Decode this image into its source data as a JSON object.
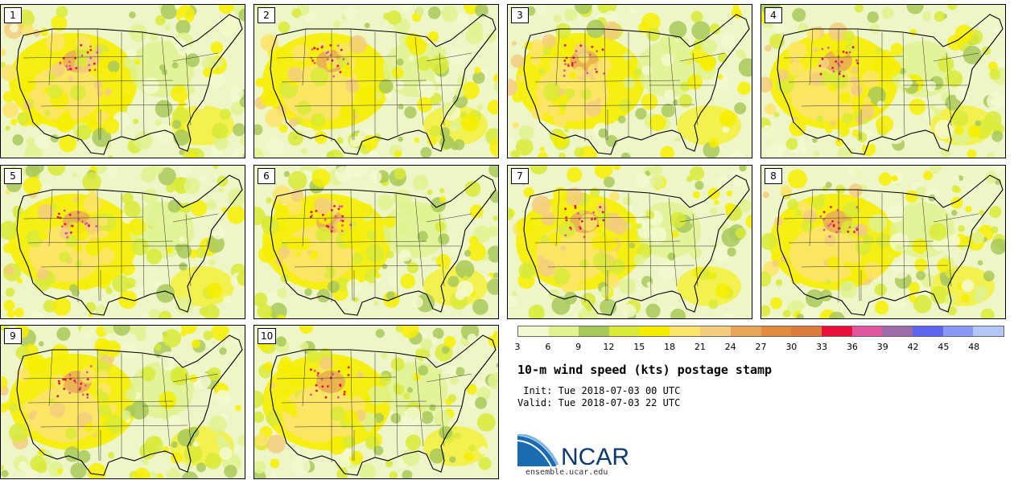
{
  "figure": {
    "title": "10-m wind speed (kts) postage stamp",
    "init_label": " Init: Tue 2018-07-03 00 UTC",
    "valid_label": "Valid: Tue 2018-07-03 22 UTC",
    "logo_text": "NCAR",
    "site": "ensemble.ucar.edu"
  },
  "panels": [
    {
      "label": "1"
    },
    {
      "label": "2"
    },
    {
      "label": "3"
    },
    {
      "label": "4"
    },
    {
      "label": "5"
    },
    {
      "label": "6"
    },
    {
      "label": "7"
    },
    {
      "label": "8"
    },
    {
      "label": "9"
    },
    {
      "label": "10"
    }
  ],
  "legend": {
    "ticks": [
      "3",
      "6",
      "9",
      "12",
      "15",
      "18",
      "21",
      "24",
      "27",
      "30",
      "33",
      "36",
      "39",
      "42",
      "45",
      "48"
    ],
    "colors": [
      "#f3f9cf",
      "#dff28f",
      "#a8c95a",
      "#d8ea37",
      "#f6ee00",
      "#fbe46a",
      "#f3cc7e",
      "#e9a55a",
      "#e28a3d",
      "#da7a3d",
      "#e8103b",
      "#e0559f",
      "#9e6ba9",
      "#5e66f0",
      "#8898f4",
      "#b4c7f6"
    ]
  }
}
